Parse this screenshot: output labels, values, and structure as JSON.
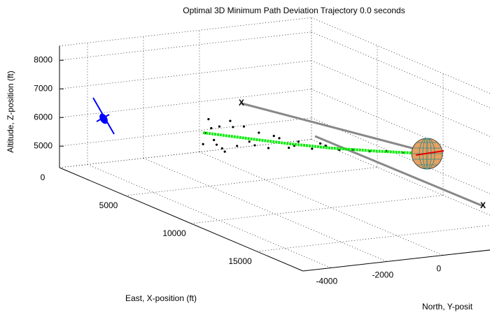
{
  "chart_data": {
    "type": "scatter3d",
    "title": "Optimal 3D Minimum Path Deviation Trajectory  0.0 seconds",
    "xlabel": "East, X-position (ft)",
    "ylabel": "North, Y-posit",
    "zlabel": "Altitude, Z-position (ft)",
    "xlim": [
      0,
      18500
    ],
    "ylim": [
      -5000,
      4000
    ],
    "zlim": [
      4250,
      8500
    ],
    "xticks": [
      0,
      5000,
      10000,
      15000
    ],
    "yticks": [
      -4000,
      -2000,
      0
    ],
    "zticks": [
      5000,
      6000,
      7000,
      8000
    ],
    "grid": true,
    "cloud": {
      "color": "#000000",
      "x": [
        2400,
        2600,
        2800,
        3000,
        3200,
        2500,
        2700,
        2900,
        3400,
        3600,
        3800,
        4000,
        4300,
        4600,
        5000,
        5300,
        5600,
        6000,
        6400,
        6800,
        7200,
        7600,
        8000,
        8400,
        3100,
        3500,
        4200,
        4800,
        5500,
        6200
      ],
      "y": [
        -1000,
        -900,
        -800,
        -700,
        -600,
        -950,
        -850,
        -750,
        -500,
        -350,
        -200,
        -100,
        100,
        300,
        500,
        700,
        900,
        1200,
        1500,
        1800,
        2100,
        2500,
        2900,
        3300,
        -650,
        -450,
        0,
        400,
        800,
        1400
      ],
      "z": [
        5100,
        6000,
        5300,
        5800,
        4950,
        5500,
        5700,
        5150,
        6050,
        5200,
        5900,
        5400,
        5750,
        5250,
        5650,
        5350,
        5600,
        5400,
        5550,
        5450,
        5500,
        5480,
        5520,
        5500,
        5050,
        5850,
        5300,
        5700,
        5450,
        5600
      ]
    },
    "trajectory": {
      "color": "#00ee00",
      "x": [
        2400,
        3800,
        5200,
        6500,
        7800,
        8930
      ],
      "y": [
        -1000,
        -200,
        700,
        1600,
        2700,
        3930
      ],
      "z": [
        5500,
        5500,
        5480,
        5480,
        5500,
        5500
      ]
    },
    "target_lines": [
      {
        "label": "X",
        "color": "#888888",
        "x": [
          17233,
          4677
        ],
        "y": [
          2025,
          1926
        ],
        "z": [
          5500,
          5500
        ]
      },
      {
        "label": "X",
        "color": "#888888",
        "x": [
          2916,
          12376
        ],
        "y": [
          128,
          2058
        ],
        "z": [
          6500,
          6500
        ]
      }
    ],
    "sphere": {
      "x": 8930,
      "y": 3930,
      "z": 5500
    },
    "aircraft": {
      "color": "#0000ff",
      "x": 874,
      "y": -3835,
      "z": 6000
    }
  }
}
